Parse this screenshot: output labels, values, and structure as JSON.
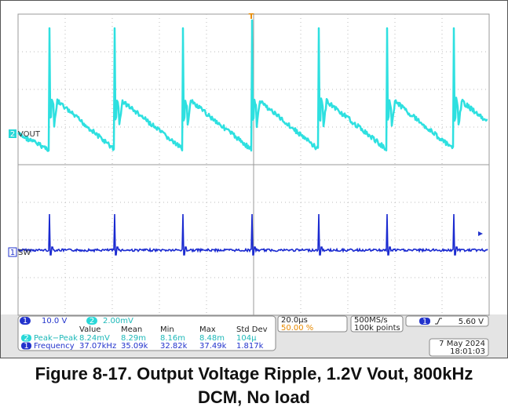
{
  "scope": {
    "trigger_marker": "T",
    "channels": [
      {
        "number": "2",
        "label": "VOUT"
      },
      {
        "number": "1",
        "label": "SW"
      }
    ],
    "status": {
      "ch1_number": "1",
      "ch1_scale": "10.0 V",
      "ch2_number": "2",
      "ch2_scale": "2.00mV",
      "timebase": "20.0µs",
      "trigger_position": "50.00 %",
      "sample_rate": "500MS/s",
      "record_length": "100k points",
      "trigger_channel": "1",
      "trigger_level": "5.60 V",
      "date": "7 May 2024",
      "time": "18:01:03"
    },
    "measurements": {
      "headers": [
        "Value",
        "Mean",
        "Min",
        "Max",
        "Std Dev"
      ],
      "rows": [
        {
          "channel": "2",
          "cells": [
            "Peak−Peak",
            "8.24mV",
            "8.29m",
            "8.16m",
            "8.48m",
            "104µ"
          ]
        },
        {
          "channel": "1",
          "cells": [
            "Frequency",
            "37.07kHz",
            "35.09k",
            "32.82k",
            "37.49k",
            "1.817k"
          ]
        }
      ]
    }
  },
  "caption": "Figure 8-17. Output Voltage Ripple, 1.2V Vout, 800kHz DCM, No load"
}
